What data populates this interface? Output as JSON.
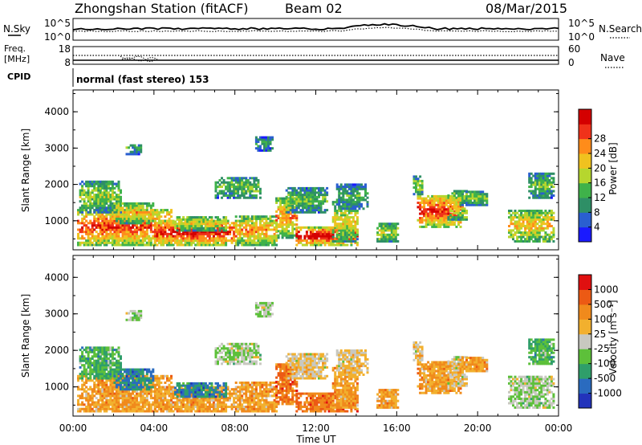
{
  "header": {
    "station": "Zhongshan Station (fitACF)",
    "beam": "Beam 02",
    "date": "08/Mar/2015"
  },
  "top_panels": {
    "nsky_label": "N.Sky",
    "nsky_ticks": [
      "10^5",
      "10^0"
    ],
    "nsearch_label": "N.Search",
    "nsearch_ticks": [
      "10^5",
      "10^0"
    ],
    "freq_label": "Freq.",
    "freq_unit": "[MHz]",
    "freq_ticks": [
      "18",
      "8"
    ],
    "nave_label": "Nave",
    "nave_ticks": [
      "60",
      "0"
    ],
    "cpid_label": "CPID",
    "cpid_text": "normal (fast stereo) 153"
  },
  "chart_data": [
    {
      "type": "heatmap",
      "name": "power",
      "ylabel": "Slant Range [km]",
      "yticks": [
        "1000",
        "2000",
        "3000",
        "4000"
      ],
      "ylim": [
        200,
        4600
      ],
      "xlim": [
        0,
        24
      ],
      "colorbar_label": "Power [dB]",
      "colorbar_ticks": [
        "4",
        "8",
        "12",
        "16",
        "20",
        "24",
        "28"
      ],
      "colorbar_colors": [
        "#1a1aff",
        "#2a5fd0",
        "#2e8f66",
        "#3fb24a",
        "#b6d62e",
        "#f0c21f",
        "#ff8c1a",
        "#f0321a",
        "#d40000"
      ]
    },
    {
      "type": "heatmap",
      "name": "velocity",
      "ylabel": "Slant Range [km]",
      "yticks": [
        "1000",
        "2000",
        "3000",
        "4000"
      ],
      "ylim": [
        200,
        4600
      ],
      "xlim": [
        0,
        24
      ],
      "colorbar_label": "Velocity [m s⁻¹]",
      "colorbar_ticks": [
        "1000",
        "500",
        "100",
        "25",
        "-25",
        "-100",
        "-500",
        "-1000"
      ],
      "colorbar_colors": [
        "#2233bb",
        "#2a6bbf",
        "#2f9e6a",
        "#5dc03a",
        "#c8c8c0",
        "#f2b02e",
        "#f08a1c",
        "#ec5a14",
        "#e01010"
      ]
    }
  ],
  "xaxis": {
    "ticks": [
      "00:00",
      "04:00",
      "08:00",
      "12:00",
      "16:00",
      "20:00",
      "00:00"
    ],
    "label": "Time UT"
  }
}
